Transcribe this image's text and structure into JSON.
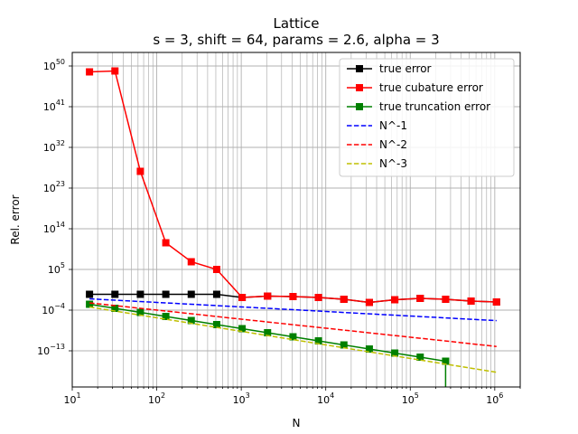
{
  "chart_data": {
    "type": "line",
    "title": "Lattice",
    "subtitle": "s = 3, shift = 64, params = 2.6, alpha = 3",
    "xlabel": "N",
    "ylabel": "Rel. error",
    "xscale": "log",
    "yscale": "log",
    "xlim": [
      10,
      2000000
    ],
    "ylim_exp": [
      -21,
      53
    ],
    "grid": "both-major-and-minor-x",
    "legend_position": "top-right",
    "x_ticks": [
      {
        "base": "10",
        "exp": "1",
        "value": 10
      },
      {
        "base": "10",
        "exp": "2",
        "value": 100
      },
      {
        "base": "10",
        "exp": "3",
        "value": 1000
      },
      {
        "base": "10",
        "exp": "4",
        "value": 10000
      },
      {
        "base": "10",
        "exp": "5",
        "value": 100000
      },
      {
        "base": "10",
        "exp": "6",
        "value": 1000000
      }
    ],
    "y_ticks": [
      {
        "base": "10",
        "exp": "50",
        "value_exp": 50
      },
      {
        "base": "10",
        "exp": "41",
        "value_exp": 41
      },
      {
        "base": "10",
        "exp": "32",
        "value_exp": 32
      },
      {
        "base": "10",
        "exp": "23",
        "value_exp": 23
      },
      {
        "base": "10",
        "exp": "14",
        "value_exp": 14
      },
      {
        "base": "10",
        "exp": "5",
        "value_exp": 5
      },
      {
        "base": "10",
        "exp": "−4",
        "value_exp": -4
      },
      {
        "base": "10",
        "exp": "−13",
        "value_exp": -13
      }
    ],
    "x": [
      16,
      32,
      64,
      128,
      256,
      512,
      1024,
      2048,
      4096,
      8192,
      16384,
      32768,
      65536,
      131072,
      262144,
      524288,
      1048576
    ],
    "series": [
      {
        "name": "true error",
        "color": "#000000",
        "style": "solid",
        "marker": "square",
        "y_exp": [
          -0.5,
          -0.5,
          -0.5,
          -0.5,
          -0.5,
          -0.5,
          -1.2,
          -0.9,
          -1.0,
          -1.2,
          -1.6,
          -2.3,
          -1.7,
          -1.4,
          -1.6,
          -2.0,
          -2.2
        ]
      },
      {
        "name": "true cubature error",
        "color": "#ff0000",
        "style": "solid",
        "marker": "square",
        "y_exp": [
          48.7,
          48.9,
          26.7,
          10.9,
          6.7,
          5.0,
          -1.2,
          -0.9,
          -1.0,
          -1.2,
          -1.6,
          -2.3,
          -1.7,
          -1.4,
          -1.6,
          -2.0,
          -2.2
        ]
      },
      {
        "name": "true truncation error",
        "color": "#008000",
        "style": "solid",
        "marker": "square",
        "y_exp": [
          -2.7,
          -3.6,
          -4.5,
          -5.4,
          -6.3,
          -7.2,
          -8.1,
          -9.0,
          -9.9,
          -10.8,
          -11.7,
          -12.6,
          -13.5,
          -14.4,
          -15.3
        ],
        "drop_to_axis_at_last": true
      },
      {
        "name": "N^-1",
        "color": "#0000ff",
        "style": "dashed",
        "marker": "none",
        "y_exp_at_16": -1.5,
        "slope": -1
      },
      {
        "name": "N^-2",
        "color": "#ff0000",
        "style": "dashed",
        "marker": "none",
        "y_exp_at_16": -2.4,
        "slope": -2
      },
      {
        "name": "N^-3",
        "color": "#bfbf00",
        "style": "dashed",
        "marker": "none",
        "y_exp_at_16": -3.3,
        "slope": -3
      }
    ]
  }
}
